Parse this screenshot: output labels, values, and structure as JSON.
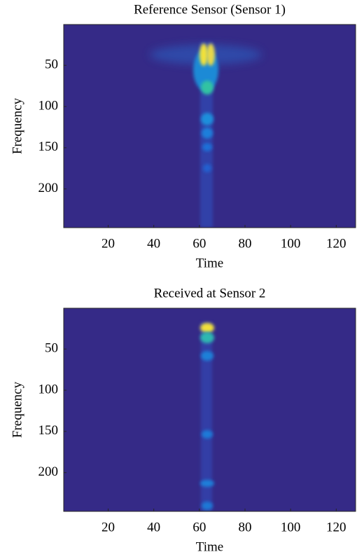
{
  "chart_data": [
    {
      "type": "heatmap",
      "title": "Reference Sensor (Sensor 1)",
      "xlabel": "Time",
      "ylabel": "Frequency",
      "xlim": [
        0.5,
        128.5
      ],
      "xticks": [
        20,
        40,
        60,
        80,
        100,
        120
      ],
      "ylim": [
        0.5,
        247
      ],
      "yticks": [
        50,
        100,
        150,
        200
      ],
      "y_reversed": true,
      "background": "#352a87"
    },
    {
      "type": "heatmap",
      "title": "Received at Sensor 2",
      "xlabel": "Time",
      "ylabel": "Frequency",
      "xlim": [
        0.5,
        128.5
      ],
      "xticks": [
        20,
        40,
        60,
        80,
        100,
        120
      ],
      "ylim": [
        0.5,
        247
      ],
      "yticks": [
        50,
        100,
        150,
        200
      ],
      "y_reversed": true,
      "background": "#352a87"
    }
  ]
}
